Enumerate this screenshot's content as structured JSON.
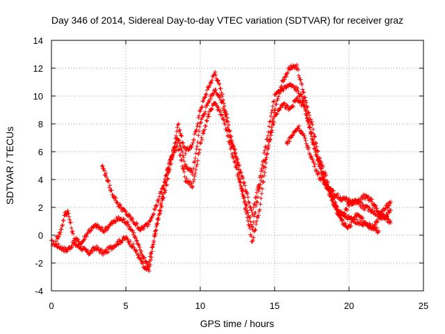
{
  "chart_data": {
    "type": "scatter",
    "title": "Day 346 of 2014, Sidereal Day-to-day VTEC variation (SDTVAR) for receiver graz",
    "xlabel": "GPS time / hours",
    "ylabel": "SDTVAR / TECUs",
    "xlim": [
      0,
      25
    ],
    "ylim": [
      -4,
      14
    ],
    "xticks": [
      0,
      5,
      10,
      15,
      20,
      25
    ],
    "yticks": [
      -4,
      -2,
      0,
      2,
      4,
      6,
      8,
      10,
      12,
      14
    ],
    "xtick_labels": [
      "0",
      "5",
      "10",
      "15",
      "20",
      "25"
    ],
    "ytick_labels": [
      "-4",
      "-2",
      "0",
      "2",
      "4",
      "6",
      "8",
      "10",
      "12",
      "14"
    ],
    "grid": true,
    "marker": "+",
    "color": "#ff0000",
    "series": [
      {
        "name": "trace-1",
        "x": [
          0,
          0.5,
          1,
          1.5,
          2,
          2.5,
          3,
          3.5,
          4,
          4.5,
          5,
          5.5,
          6,
          6.3,
          6.6,
          7,
          7.5,
          8,
          8.5,
          9,
          9.5,
          10,
          10.5,
          11,
          11.5,
          12,
          12.5,
          13,
          13.5,
          14,
          14.5,
          15,
          15.5,
          16,
          16.5,
          17,
          17.5,
          18,
          18.5,
          19,
          19.5,
          20,
          20.5,
          21,
          21.5,
          22,
          22.5,
          22.8
        ],
        "y": [
          -0.5,
          -0.8,
          -1.1,
          -0.6,
          -0.9,
          -1.3,
          -0.9,
          -1.3,
          -0.9,
          -0.5,
          -0.2,
          -0.8,
          -1.8,
          -2.5,
          -2.4,
          0.5,
          2.5,
          5,
          8,
          6,
          6.5,
          9,
          10.5,
          11.7,
          10,
          7.5,
          5,
          2,
          -0.5,
          2,
          6,
          9,
          11,
          12,
          12.1,
          10,
          8,
          5.5,
          4,
          2.5,
          1,
          0.5,
          1.5,
          1,
          0.6,
          1.2,
          1.4,
          1.8
        ]
      },
      {
        "name": "trace-2",
        "x": [
          0.3,
          0.6,
          0.9,
          1.1,
          1.5,
          2,
          2.5,
          3,
          3.5,
          4,
          4.5,
          5,
          5.5,
          6,
          6.5,
          7,
          7.5,
          8,
          8.5,
          9,
          9.5,
          10,
          10.5,
          11,
          11.5,
          12,
          12.5,
          13,
          13.5,
          14,
          14.5,
          15,
          15.5,
          16,
          16.5,
          17,
          17.5,
          18,
          18.5,
          19,
          19.5,
          20,
          20.5,
          21,
          21.5,
          22,
          22.5,
          22.8
        ],
        "y": [
          -0.3,
          0.2,
          1.5,
          1.7,
          -0.2,
          -0.6,
          0.3,
          0.7,
          0.3,
          0.8,
          1.2,
          1,
          0.2,
          -1.2,
          -2.2,
          0.2,
          3,
          5.5,
          7,
          5,
          4.5,
          8,
          9.5,
          10.5,
          9.5,
          7,
          5.5,
          3.5,
          1.5,
          4,
          7,
          10,
          10.5,
          10.8,
          10.5,
          9.5,
          7,
          5.2,
          3.5,
          2,
          1.2,
          2.2,
          2.5,
          2,
          1.8,
          1.5,
          2,
          2.4
        ]
      },
      {
        "name": "trace-3",
        "x": [
          3.4,
          3.7,
          4,
          4.5,
          5,
          5.5,
          6,
          6.5,
          7,
          7.5,
          8,
          8.5,
          9,
          9.5,
          10,
          10.5,
          11,
          11.5,
          12,
          12.5,
          13,
          13.5,
          14,
          14.5,
          15,
          15.5,
          16,
          16.5,
          17,
          17.5,
          18,
          18.5,
          19,
          19.5,
          20,
          20.5,
          21,
          21.5,
          22
        ],
        "y": [
          5,
          4.2,
          3.2,
          2.2,
          1.6,
          1,
          0.4,
          0.8,
          2,
          3.5,
          5.5,
          6.5,
          4,
          3.5,
          6.5,
          8.5,
          9.5,
          8.5,
          6.5,
          4.5,
          2.5,
          0.5,
          3.5,
          6,
          8.5,
          9.5,
          9,
          9.8,
          9.2,
          7,
          5,
          3.5,
          2.2,
          1.5,
          1.2,
          1,
          0.8,
          0.6,
          0.3
        ]
      },
      {
        "name": "trace-4",
        "x": [
          15.8,
          16.2,
          16.6,
          17,
          17.5,
          18,
          18.5,
          19,
          19.5,
          20,
          20.5,
          21,
          21.5,
          22,
          22.5,
          22.8
        ],
        "y": [
          6.6,
          7.2,
          7.8,
          7,
          5.5,
          4.2,
          3.5,
          3,
          2.6,
          2.5,
          2.3,
          2.8,
          2.5,
          1.6,
          1.2,
          0.9
        ]
      }
    ]
  }
}
